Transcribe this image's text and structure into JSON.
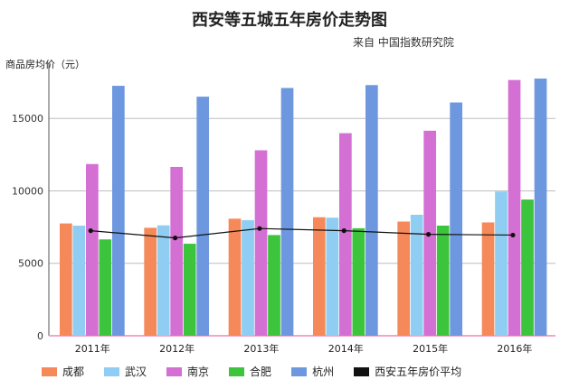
{
  "chart_data": {
    "type": "bar",
    "title": "西安等五城五年房价走势图",
    "subtitle": "来自 中国指数研究院",
    "ylabel": "商品房均价（元）",
    "ylim": [
      0,
      18500
    ],
    "yticks": [
      "0",
      "5000",
      "10000",
      "15000"
    ],
    "grid": true,
    "legend_position": "bottom",
    "categories": [
      "2011年",
      "2012年",
      "2013年",
      "2014年",
      "2015年",
      "2016年"
    ],
    "series": [
      {
        "name": "成都",
        "color": "#f5895a",
        "values": [
          7750,
          7450,
          8080,
          8180,
          7880,
          7820
        ]
      },
      {
        "name": "武汉",
        "color": "#8fcdf2",
        "values": [
          7600,
          7620,
          7980,
          8150,
          8350,
          9950
        ]
      },
      {
        "name": "南京",
        "color": "#d46fd4",
        "values": [
          11850,
          11650,
          12800,
          13980,
          14150,
          17650
        ]
      },
      {
        "name": "合肥",
        "color": "#3cc43c",
        "values": [
          6650,
          6350,
          6950,
          7420,
          7600,
          9400
        ]
      },
      {
        "name": "杭州",
        "color": "#6d98e0",
        "values": [
          17250,
          16500,
          17100,
          17300,
          16100,
          17750
        ]
      }
    ],
    "line_series": {
      "name": "西安五年房价平均",
      "color": "#111111",
      "values": [
        7250,
        6750,
        7400,
        7250,
        7000,
        6950
      ]
    }
  }
}
